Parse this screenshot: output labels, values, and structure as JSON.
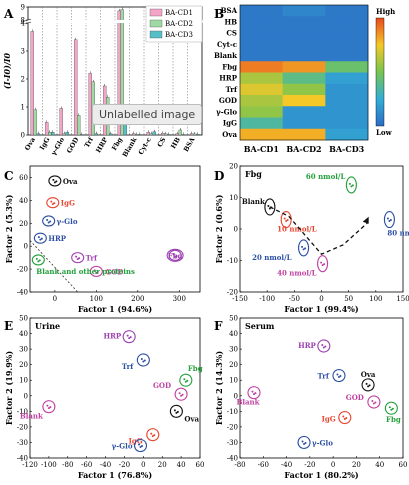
{
  "tooltip": "Unlabelled image",
  "chart_data": [
    {
      "panel": "A",
      "type": "bar",
      "ylabel": "(I-I0)/I0",
      "ylim_low": [
        0,
        4
      ],
      "ylim_high": [
        8,
        9
      ],
      "yticks_low": [
        0,
        1,
        2,
        3,
        4
      ],
      "yticks_high": [
        8,
        9
      ],
      "categories": [
        "Ova",
        "IgG",
        "γ-Glo",
        "GOD",
        "Trf",
        "HRP",
        "Fbg",
        "Blank",
        "Cyt-c",
        "CS",
        "HB",
        "BSA"
      ],
      "colors": [
        "#f2a5c6",
        "#9fdaa4",
        "#55bfc7"
      ],
      "series": [
        {
          "name": "BA-CD1",
          "values": [
            3.7,
            0.45,
            0.95,
            3.4,
            2.2,
            1.75,
            8.7,
            0.05,
            0.1,
            0.06,
            0.05,
            0.05
          ]
        },
        {
          "name": "BA-CD2",
          "values": [
            0.9,
            0.1,
            0.05,
            0.7,
            1.9,
            1.35,
            8.8,
            0.02,
            0.05,
            0.04,
            0.18,
            0.04
          ]
        },
        {
          "name": "BA-CD3",
          "values": [
            0.05,
            0.1,
            0.1,
            0.02,
            0.05,
            0.05,
            0.6,
            0.02,
            0.12,
            0.02,
            0.02,
            0.03
          ]
        }
      ]
    },
    {
      "panel": "B",
      "type": "heatmap",
      "rows": [
        "BSA",
        "HB",
        "CS",
        "Cyt-c",
        "Blank",
        "Fbg",
        "HRP",
        "Trf",
        "GOD",
        "γ-Glo",
        "IgG",
        "Ova"
      ],
      "columns": [
        "BA-CD1",
        "BA-CD2",
        "BA-CD3"
      ],
      "values": [
        [
          0.05,
          0.1,
          0.05
        ],
        [
          0.05,
          0.05,
          0.05
        ],
        [
          0.05,
          0.05,
          0.05
        ],
        [
          0.05,
          0.05,
          0.05
        ],
        [
          0.05,
          0.05,
          0.05
        ],
        [
          0.9,
          0.85,
          0.45
        ],
        [
          0.6,
          0.4,
          0.2
        ],
        [
          0.7,
          0.55,
          0.15
        ],
        [
          0.6,
          0.75,
          0.15
        ],
        [
          0.55,
          0.15,
          0.15
        ],
        [
          0.35,
          0.15,
          0.15
        ],
        [
          0.8,
          0.8,
          0.2
        ]
      ],
      "colorbar_high": "High",
      "colorbar_low": "Low"
    },
    {
      "panel": "C",
      "type": "scatter",
      "xlabel": "Factor 1 (94.6%)",
      "ylabel": "Factor 2 (5.3%)",
      "xlim": [
        -60,
        350
      ],
      "ylim": [
        -40,
        70
      ],
      "xticks": [
        -100,
        0,
        100,
        200,
        300
      ],
      "yticks": [
        -40,
        -20,
        0,
        20,
        40,
        60
      ],
      "groups": [
        {
          "label": "Ova",
          "color": "#111111",
          "x": 0,
          "y": 57
        },
        {
          "label": "IgG",
          "color": "#e8462f",
          "x": -5,
          "y": 38
        },
        {
          "label": "γ-Glo",
          "color": "#2c4fa3",
          "x": -15,
          "y": 22
        },
        {
          "label": "HRP",
          "color": "#2c4fa3",
          "x": -35,
          "y": 7
        },
        {
          "label": "Trf",
          "color": "#a23fb3",
          "x": 55,
          "y": -10
        },
        {
          "label": "GOD",
          "color": "#c040a0",
          "x": 100,
          "y": -22
        },
        {
          "label": "Fbg",
          "color": "#9b3fb0",
          "x": 290,
          "y": -8
        },
        {
          "label": "Blank and other proteins",
          "color": "#22a03a",
          "x": -40,
          "y": -12
        }
      ]
    },
    {
      "panel": "D",
      "type": "scatter",
      "annotation": "Fbg",
      "xlabel": "Factor 1 (99.4%)",
      "ylabel": "Factor 2 (0.6%)",
      "xlim": [
        -150,
        150
      ],
      "ylim": [
        -20,
        20
      ],
      "xticks": [
        -150,
        -100,
        -50,
        0,
        50,
        100,
        150
      ],
      "yticks": [
        -20,
        -10,
        0,
        10,
        20
      ],
      "groups": [
        {
          "label": "Blank",
          "color": "#111111",
          "x": -95,
          "y": 7
        },
        {
          "label": "10 nmol/L",
          "color": "#e8462f",
          "x": -65,
          "y": 3
        },
        {
          "label": "20 nmol/L",
          "color": "#2c4fa3",
          "x": -33,
          "y": -6
        },
        {
          "label": "40 nmol/L",
          "color": "#c040a0",
          "x": 2,
          "y": -11
        },
        {
          "label": "60 nmol/L",
          "color": "#22a03a",
          "x": 55,
          "y": 14
        },
        {
          "label": "80 nmol/L",
          "color": "#2c4fa3",
          "x": 125,
          "y": 3
        }
      ]
    },
    {
      "panel": "E",
      "type": "scatter",
      "annotation": "Urine",
      "xlabel": "Factor 1 (76.8%)",
      "ylabel": "Factor 2 (19.9%)",
      "xlim": [
        -120,
        60
      ],
      "ylim": [
        -40,
        50
      ],
      "xticks": [
        -120,
        -100,
        -80,
        -60,
        -40,
        -20,
        0,
        20,
        40,
        60
      ],
      "yticks": [
        -40,
        -30,
        -20,
        -10,
        0,
        10,
        20,
        30,
        40,
        50
      ],
      "groups": [
        {
          "label": "HRP",
          "color": "#9b3fb0",
          "x": -15,
          "y": 38
        },
        {
          "label": "Trf",
          "color": "#2c4fa3",
          "x": 0,
          "y": 23
        },
        {
          "label": "GOD",
          "color": "#c040a0",
          "x": 40,
          "y": 1
        },
        {
          "label": "Fbg",
          "color": "#22a03a",
          "x": 45,
          "y": 10
        },
        {
          "label": "Blank",
          "color": "#c040a0",
          "x": -100,
          "y": -7
        },
        {
          "label": "IgG",
          "color": "#e8462f",
          "x": 10,
          "y": -25
        },
        {
          "label": "Ova",
          "color": "#111111",
          "x": 35,
          "y": -10
        },
        {
          "label": "γ-Glo",
          "color": "#2c4fa3",
          "x": -3,
          "y": -32
        }
      ]
    },
    {
      "panel": "F",
      "type": "scatter",
      "annotation": "Serum",
      "xlabel": "Factor 1 (80.2%)",
      "ylabel": "Factor 2 (14.3%)",
      "xlim": [
        -80,
        60
      ],
      "ylim": [
        -40,
        50
      ],
      "xticks": [
        -80,
        -60,
        -40,
        -20,
        0,
        20,
        40,
        60
      ],
      "yticks": [
        -40,
        -30,
        -20,
        -10,
        0,
        10,
        20,
        30,
        40,
        50
      ],
      "groups": [
        {
          "label": "HRP",
          "color": "#9b3fb0",
          "x": -8,
          "y": 32
        },
        {
          "label": "Trf",
          "color": "#2c4fa3",
          "x": 5,
          "y": 13
        },
        {
          "label": "Ova",
          "color": "#111111",
          "x": 30,
          "y": 7
        },
        {
          "label": "GOD",
          "color": "#c040a0",
          "x": 35,
          "y": -4
        },
        {
          "label": "Blank",
          "color": "#c040a0",
          "x": -68,
          "y": 2
        },
        {
          "label": "IgG",
          "color": "#e8462f",
          "x": 10,
          "y": -14
        },
        {
          "label": "Fbg",
          "color": "#22a03a",
          "x": 50,
          "y": -8
        },
        {
          "label": "γ-Glo",
          "color": "#2c4fa3",
          "x": -25,
          "y": -30
        }
      ]
    }
  ]
}
